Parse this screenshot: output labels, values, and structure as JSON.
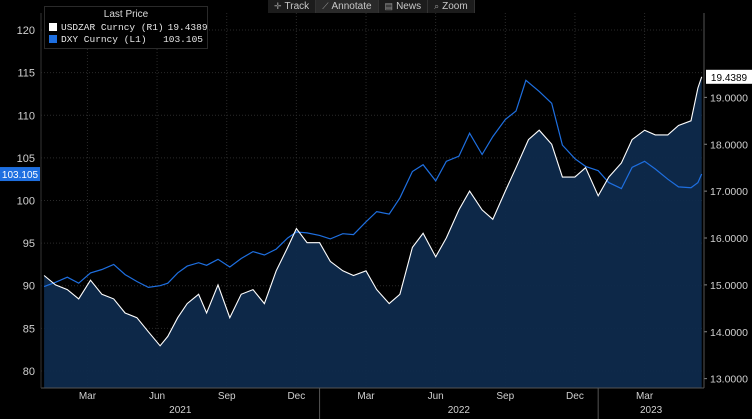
{
  "toolbar": {
    "items": [
      {
        "label": "Track",
        "icon": "crosshair-icon"
      },
      {
        "label": "Annotate",
        "icon": "pencil-icon"
      },
      {
        "label": "News",
        "icon": "news-icon"
      },
      {
        "label": "Zoom",
        "icon": "zoom-icon"
      }
    ]
  },
  "legend": {
    "title": "Last Price",
    "series": [
      {
        "label": "USDZAR Curncy (R1)",
        "value": "19.4389",
        "color": "#ffffff"
      },
      {
        "label": "DXY Curncy  (L1)",
        "value": "103.105",
        "color": "#1e6fe0"
      }
    ]
  },
  "chart_data": {
    "type": "line",
    "title": "Last Price",
    "x_range": [
      "2021-01",
      "2023-05"
    ],
    "x_tick_labels": [
      "Mar",
      "Jun",
      "Sep",
      "Dec",
      "Mar",
      "Jun",
      "Sep",
      "Dec",
      "Mar"
    ],
    "year_labels": [
      "2021",
      "2022",
      "2023"
    ],
    "left_axis": {
      "series": "DXY Curncy",
      "ylim": [
        78,
        122
      ],
      "ticks": [
        "80",
        "85",
        "90",
        "95",
        "100",
        "105",
        "110",
        "115",
        "120"
      ],
      "current_value": "103.105"
    },
    "right_axis": {
      "series": "USDZAR Curncy",
      "ylim": [
        12.8,
        20.8
      ],
      "ticks": [
        "13.0000",
        "14.0000",
        "15.0000",
        "16.0000",
        "17.0000",
        "18.0000",
        "19.0000"
      ],
      "current_value": "19.4389"
    },
    "series": [
      {
        "name": "USDZAR Curncy",
        "axis": "right",
        "color": "#ffffff",
        "points": [
          [
            "2021-01-05",
            15.2
          ],
          [
            "2021-01-20",
            15.0
          ],
          [
            "2021-02-05",
            14.9
          ],
          [
            "2021-02-20",
            14.7
          ],
          [
            "2021-03-05",
            15.1
          ],
          [
            "2021-03-20",
            14.8
          ],
          [
            "2021-04-05",
            14.7
          ],
          [
            "2021-04-20",
            14.4
          ],
          [
            "2021-05-05",
            14.3
          ],
          [
            "2021-05-20",
            14.0
          ],
          [
            "2021-06-05",
            13.7
          ],
          [
            "2021-06-15",
            13.9
          ],
          [
            "2021-06-28",
            14.3
          ],
          [
            "2021-07-10",
            14.6
          ],
          [
            "2021-07-25",
            14.8
          ],
          [
            "2021-08-05",
            14.4
          ],
          [
            "2021-08-20",
            15.0
          ],
          [
            "2021-09-05",
            14.3
          ],
          [
            "2021-09-20",
            14.8
          ],
          [
            "2021-10-05",
            14.9
          ],
          [
            "2021-10-20",
            14.6
          ],
          [
            "2021-11-05",
            15.3
          ],
          [
            "2021-11-20",
            15.8
          ],
          [
            "2021-12-01",
            16.2
          ],
          [
            "2021-12-15",
            15.9
          ],
          [
            "2022-01-01",
            15.9
          ],
          [
            "2022-01-15",
            15.5
          ],
          [
            "2022-02-01",
            15.3
          ],
          [
            "2022-02-15",
            15.2
          ],
          [
            "2022-03-01",
            15.3
          ],
          [
            "2022-03-15",
            14.9
          ],
          [
            "2022-04-01",
            14.6
          ],
          [
            "2022-04-15",
            14.8
          ],
          [
            "2022-05-01",
            15.8
          ],
          [
            "2022-05-15",
            16.1
          ],
          [
            "2022-06-01",
            15.6
          ],
          [
            "2022-06-15",
            16.0
          ],
          [
            "2022-07-01",
            16.6
          ],
          [
            "2022-07-15",
            17.0
          ],
          [
            "2022-08-01",
            16.6
          ],
          [
            "2022-08-15",
            16.4
          ],
          [
            "2022-09-01",
            17.0
          ],
          [
            "2022-09-15",
            17.5
          ],
          [
            "2022-10-01",
            18.1
          ],
          [
            "2022-10-15",
            18.3
          ],
          [
            "2022-11-01",
            18.0
          ],
          [
            "2022-11-15",
            17.3
          ],
          [
            "2022-12-01",
            17.3
          ],
          [
            "2022-12-15",
            17.5
          ],
          [
            "2023-01-01",
            16.9
          ],
          [
            "2023-01-15",
            17.3
          ],
          [
            "2023-02-01",
            17.6
          ],
          [
            "2023-02-15",
            18.1
          ],
          [
            "2023-03-01",
            18.3
          ],
          [
            "2023-03-15",
            18.2
          ],
          [
            "2023-04-01",
            18.2
          ],
          [
            "2023-04-15",
            18.4
          ],
          [
            "2023-05-01",
            18.5
          ],
          [
            "2023-05-10",
            19.2
          ],
          [
            "2023-05-15",
            19.44
          ]
        ]
      },
      {
        "name": "DXY Curncy",
        "axis": "left",
        "color": "#1e6fe0",
        "points": [
          [
            "2021-01-05",
            89.9
          ],
          [
            "2021-01-20",
            90.4
          ],
          [
            "2021-02-05",
            91.0
          ],
          [
            "2021-02-20",
            90.3
          ],
          [
            "2021-03-05",
            91.5
          ],
          [
            "2021-03-20",
            91.9
          ],
          [
            "2021-04-05",
            92.5
          ],
          [
            "2021-04-20",
            91.3
          ],
          [
            "2021-05-05",
            90.5
          ],
          [
            "2021-05-20",
            89.8
          ],
          [
            "2021-06-05",
            90.0
          ],
          [
            "2021-06-15",
            90.3
          ],
          [
            "2021-06-28",
            91.5
          ],
          [
            "2021-07-10",
            92.3
          ],
          [
            "2021-07-25",
            92.7
          ],
          [
            "2021-08-05",
            92.4
          ],
          [
            "2021-08-20",
            93.1
          ],
          [
            "2021-09-05",
            92.2
          ],
          [
            "2021-09-20",
            93.2
          ],
          [
            "2021-10-05",
            94.0
          ],
          [
            "2021-10-20",
            93.6
          ],
          [
            "2021-11-05",
            94.3
          ],
          [
            "2021-11-20",
            95.6
          ],
          [
            "2021-12-01",
            96.3
          ],
          [
            "2021-12-15",
            96.2
          ],
          [
            "2022-01-01",
            95.9
          ],
          [
            "2022-01-15",
            95.5
          ],
          [
            "2022-02-01",
            96.1
          ],
          [
            "2022-02-15",
            96.0
          ],
          [
            "2022-03-01",
            97.5
          ],
          [
            "2022-03-15",
            98.7
          ],
          [
            "2022-04-01",
            98.4
          ],
          [
            "2022-04-15",
            100.3
          ],
          [
            "2022-05-01",
            103.4
          ],
          [
            "2022-05-15",
            104.2
          ],
          [
            "2022-06-01",
            102.3
          ],
          [
            "2022-06-15",
            104.6
          ],
          [
            "2022-07-01",
            105.2
          ],
          [
            "2022-07-15",
            107.9
          ],
          [
            "2022-08-01",
            105.4
          ],
          [
            "2022-08-15",
            107.5
          ],
          [
            "2022-09-01",
            109.5
          ],
          [
            "2022-09-15",
            110.5
          ],
          [
            "2022-09-28",
            114.1
          ],
          [
            "2022-10-15",
            112.8
          ],
          [
            "2022-11-01",
            111.4
          ],
          [
            "2022-11-15",
            106.5
          ],
          [
            "2022-12-01",
            104.9
          ],
          [
            "2022-12-15",
            104.0
          ],
          [
            "2023-01-01",
            103.5
          ],
          [
            "2023-01-15",
            102.1
          ],
          [
            "2023-02-01",
            101.4
          ],
          [
            "2023-02-15",
            103.9
          ],
          [
            "2023-03-01",
            104.6
          ],
          [
            "2023-03-15",
            103.7
          ],
          [
            "2023-04-01",
            102.5
          ],
          [
            "2023-04-15",
            101.6
          ],
          [
            "2023-05-01",
            101.5
          ],
          [
            "2023-05-10",
            102.1
          ],
          [
            "2023-05-15",
            103.105
          ]
        ]
      }
    ]
  }
}
